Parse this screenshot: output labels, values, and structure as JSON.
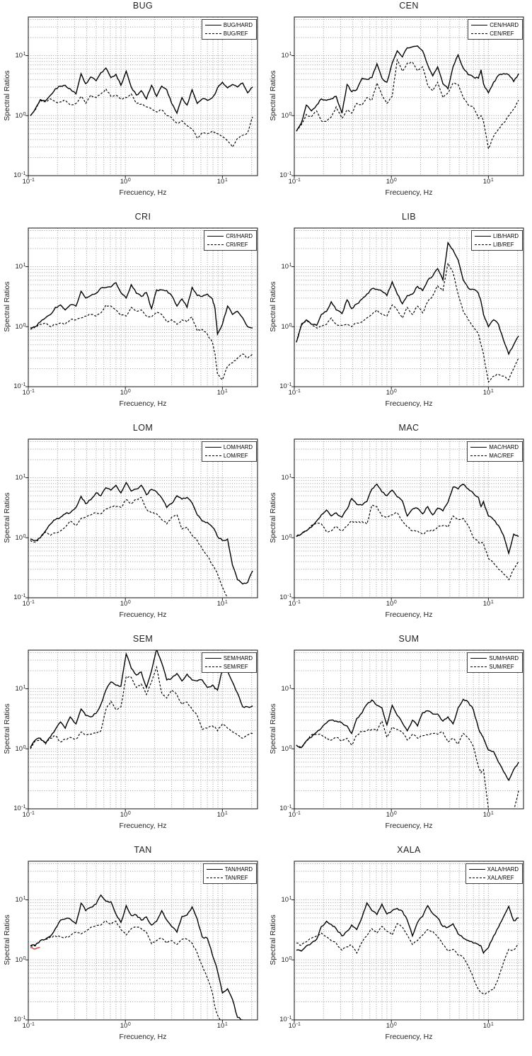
{
  "page": {
    "background": "#ffffff"
  },
  "chart_data": {
    "type": "line",
    "scale": "log-log",
    "xlabel": "Frecuency, Hz",
    "ylabel": "Spectral Ratios",
    "xlim": [
      0.1,
      23
    ],
    "ylim": [
      0.1,
      44
    ],
    "grid": "dotted major and minor gridlines, both axes",
    "legend_position": "top-right inset box",
    "line_styles": {
      "hard": "solid black",
      "ref": "dashed black"
    },
    "colors": {
      "line": "#000000",
      "grid": "#9c9c9c",
      "axis": "#222222",
      "tan_artifact": "#d93025"
    },
    "x_ticks": [
      {
        "m": "10",
        "e": "-1"
      },
      {
        "m": "10",
        "e": "0"
      },
      {
        "m": "10",
        "e": "1"
      }
    ],
    "y_ticks": [
      {
        "m": "10",
        "e": "-1"
      },
      {
        "m": "10",
        "e": "0"
      },
      {
        "m": "10",
        "e": "1"
      }
    ],
    "x_hz": [
      0.105,
      0.118,
      0.133,
      0.15,
      0.17,
      0.19,
      0.215,
      0.24,
      0.27,
      0.31,
      0.35,
      0.39,
      0.44,
      0.5,
      0.56,
      0.63,
      0.71,
      0.8,
      0.9,
      1.02,
      1.15,
      1.3,
      1.46,
      1.65,
      1.86,
      2.1,
      2.37,
      2.67,
      3.0,
      3.4,
      3.83,
      4.32,
      4.87,
      5.5,
      6.2,
      7.0,
      7.9,
      8.4,
      8.9,
      10.0,
      11.3,
      12.7,
      14.3,
      16.2,
      18.2,
      20.5
    ],
    "charts": [
      {
        "title": "BUG",
        "legend": [
          "BUG/HARD",
          "BUG/REF"
        ],
        "hard": [
          1.0,
          1.3,
          1.85,
          1.75,
          2.2,
          2.8,
          3.1,
          3.2,
          2.8,
          2.3,
          5.0,
          3.4,
          4.4,
          3.8,
          5.2,
          6.2,
          4.3,
          4.9,
          3.2,
          5.5,
          3.0,
          2.2,
          2.6,
          1.9,
          3.2,
          2.1,
          3.1,
          2.7,
          1.6,
          1.1,
          2.0,
          1.5,
          2.7,
          1.6,
          1.9,
          1.8,
          2.0,
          2.3,
          2.9,
          3.6,
          2.9,
          3.3,
          3.0,
          3.5,
          2.4,
          3.0
        ],
        "ref": [
          1.0,
          1.25,
          1.8,
          1.7,
          1.9,
          1.7,
          1.7,
          1.8,
          1.5,
          1.6,
          2.1,
          1.6,
          2.2,
          2.0,
          2.3,
          2.8,
          2.1,
          2.2,
          1.9,
          2.0,
          2.3,
          1.6,
          1.55,
          1.4,
          1.3,
          1.15,
          1.25,
          1.0,
          0.93,
          0.75,
          0.82,
          0.68,
          0.6,
          0.42,
          0.52,
          0.5,
          0.55,
          0.52,
          0.5,
          0.45,
          0.38,
          0.3,
          0.42,
          0.47,
          0.52,
          0.95
        ]
      },
      {
        "title": "CEN",
        "legend": [
          "CEN/HARD",
          "CEN/REF"
        ],
        "hard": [
          0.55,
          0.75,
          1.5,
          1.2,
          1.5,
          1.9,
          1.8,
          1.9,
          2.1,
          1.1,
          3.3,
          2.5,
          2.7,
          4.2,
          4.0,
          4.3,
          7.3,
          4.2,
          3.6,
          7.5,
          12,
          9.5,
          13.5,
          14,
          14.5,
          12,
          7,
          4.6,
          6.5,
          3.4,
          2.8,
          6.5,
          10.3,
          6.2,
          4.8,
          4.4,
          4.2,
          5.8,
          3.4,
          2.4,
          3.6,
          4.7,
          5.0,
          4.8,
          3.7,
          5.0
        ],
        "ref": [
          0.55,
          0.7,
          1.05,
          0.95,
          1.2,
          0.82,
          0.8,
          0.95,
          1.4,
          0.9,
          1.25,
          1.1,
          1.6,
          1.5,
          2.0,
          1.8,
          3.5,
          2.2,
          1.6,
          2.1,
          8.5,
          5.5,
          7.5,
          7.8,
          5.6,
          6.5,
          3.2,
          2.6,
          3.6,
          2.0,
          2.4,
          3.5,
          3.3,
          2.0,
          1.5,
          1.4,
          0.9,
          1.0,
          0.8,
          0.28,
          0.45,
          0.6,
          0.75,
          1.0,
          1.3,
          1.8
        ]
      },
      {
        "title": "CRI",
        "legend": [
          "CRI/HARD",
          "CRI/REF"
        ],
        "hard": [
          0.95,
          1.0,
          1.2,
          1.4,
          1.6,
          2.1,
          2.3,
          1.9,
          2.3,
          2.2,
          3.9,
          3.0,
          3.3,
          3.6,
          4.4,
          4.5,
          4.6,
          5.4,
          3.7,
          3.0,
          5.0,
          3.6,
          3.2,
          3.7,
          2.0,
          4.1,
          4.1,
          4.0,
          3.3,
          2.2,
          2.9,
          2.1,
          4.5,
          3.3,
          3.2,
          3.5,
          2.9,
          2.0,
          0.75,
          1.1,
          2.2,
          1.6,
          1.8,
          1.4,
          1.0,
          0.95
        ],
        "ref": [
          0.9,
          1.0,
          1.1,
          1.15,
          1.0,
          1.1,
          1.15,
          1.1,
          1.3,
          1.3,
          1.4,
          1.5,
          1.6,
          1.5,
          1.7,
          2.3,
          2.2,
          1.9,
          1.55,
          1.5,
          2.1,
          1.8,
          1.9,
          1.5,
          1.45,
          1.75,
          1.6,
          1.2,
          1.3,
          1.1,
          1.3,
          1.2,
          1.45,
          0.85,
          0.9,
          0.75,
          0.55,
          0.35,
          0.16,
          0.13,
          0.22,
          0.25,
          0.3,
          0.35,
          0.3,
          0.35
        ]
      },
      {
        "title": "LIB",
        "legend": [
          "LIB/HARD",
          "LIB/REF"
        ],
        "hard": [
          0.55,
          1.05,
          1.3,
          1.1,
          1.05,
          1.6,
          1.8,
          2.6,
          1.9,
          1.65,
          2.8,
          2.0,
          2.4,
          2.9,
          3.5,
          4.3,
          4.2,
          3.9,
          3.3,
          5.6,
          3.5,
          2.4,
          3.3,
          3.5,
          4.7,
          4.0,
          5.9,
          7.0,
          9.3,
          6.0,
          25,
          19,
          13,
          6.0,
          4.4,
          4.2,
          3.6,
          2.6,
          1.6,
          1.0,
          1.3,
          1.1,
          0.6,
          0.35,
          0.5,
          0.7
        ],
        "ref": [
          0.55,
          1.1,
          1.25,
          1.1,
          0.95,
          1.0,
          1.1,
          1.4,
          1.1,
          1.05,
          1.1,
          1.0,
          1.15,
          1.2,
          1.4,
          1.6,
          1.9,
          1.6,
          1.5,
          2.3,
          1.9,
          1.4,
          2.1,
          1.6,
          2.2,
          1.7,
          2.6,
          3.3,
          4.8,
          4.0,
          11.5,
          8.0,
          3.5,
          1.8,
          1.3,
          1.0,
          0.75,
          0.5,
          0.35,
          0.12,
          0.15,
          0.16,
          0.15,
          0.13,
          0.2,
          0.3
        ]
      },
      {
        "title": "LOM",
        "legend": [
          "LOM/HARD",
          "LOM/REF"
        ],
        "hard": [
          0.95,
          0.9,
          1.0,
          1.3,
          1.7,
          2.0,
          2.2,
          2.5,
          2.6,
          3.2,
          4.9,
          3.7,
          4.3,
          5.6,
          5.0,
          6.8,
          6.2,
          7.5,
          5.6,
          8.3,
          6.0,
          6.5,
          7.5,
          5.2,
          6.4,
          5.8,
          4.6,
          3.2,
          3.7,
          5.0,
          4.4,
          4.7,
          3.8,
          2.4,
          1.9,
          1.8,
          1.5,
          1.3,
          1.05,
          0.9,
          0.95,
          0.35,
          0.2,
          0.17,
          0.18,
          0.28
        ],
        "ref": [
          0.9,
          0.85,
          1.0,
          1.25,
          1.1,
          1.2,
          1.3,
          1.5,
          1.9,
          1.6,
          2.1,
          2.2,
          2.4,
          2.6,
          2.5,
          3.0,
          3.3,
          3.3,
          3.2,
          4.3,
          3.7,
          4.4,
          4.7,
          3.0,
          2.6,
          2.5,
          2.0,
          1.7,
          2.2,
          2.4,
          1.4,
          1.5,
          1.1,
          0.9,
          0.65,
          0.5,
          0.35,
          0.3,
          0.25,
          0.15,
          0.1,
          0.07,
          null,
          null,
          null,
          null
        ]
      },
      {
        "title": "MAC",
        "legend": [
          "MAC/HARD",
          "MAC/REF"
        ],
        "hard": [
          1.05,
          1.15,
          1.3,
          1.5,
          1.9,
          2.4,
          2.9,
          2.3,
          2.6,
          2.2,
          3.0,
          4.5,
          3.6,
          3.5,
          4.0,
          6.5,
          7.8,
          5.8,
          5.0,
          6.2,
          4.8,
          4.1,
          2.3,
          3.0,
          3.1,
          2.5,
          3.3,
          2.4,
          3.1,
          2.8,
          3.9,
          7.0,
          6.5,
          7.8,
          6.5,
          5.5,
          4.7,
          3.3,
          4.0,
          2.3,
          2.0,
          1.6,
          1.1,
          0.55,
          1.15,
          1.05
        ],
        "ref": [
          1.05,
          1.15,
          1.3,
          1.6,
          1.75,
          1.7,
          1.25,
          1.3,
          1.55,
          1.3,
          1.55,
          1.9,
          1.8,
          1.85,
          1.7,
          3.5,
          3.3,
          2.3,
          2.2,
          2.4,
          2.6,
          1.9,
          1.5,
          1.3,
          1.3,
          1.15,
          1.3,
          1.3,
          1.5,
          1.6,
          1.5,
          2.3,
          2.0,
          2.1,
          1.6,
          1.0,
          0.85,
          0.82,
          0.8,
          0.45,
          0.38,
          0.3,
          0.25,
          0.2,
          0.3,
          0.4
        ]
      },
      {
        "title": "SEM",
        "legend": [
          "SEM/HARD",
          "SEM/REF"
        ],
        "hard": [
          1.05,
          1.4,
          1.5,
          1.25,
          1.6,
          2.1,
          2.8,
          2.2,
          3.4,
          2.6,
          4.6,
          3.6,
          3.4,
          3.9,
          5.5,
          9.5,
          13,
          11.5,
          11,
          38,
          22,
          17,
          19,
          10.5,
          20,
          46,
          27,
          14,
          15,
          18,
          13.5,
          17.5,
          14,
          13.5,
          14,
          10.5,
          11.5,
          10,
          9.5,
          21,
          19.5,
          13,
          8.5,
          5.0,
          5.0,
          5.2
        ],
        "ref": [
          1.0,
          1.35,
          1.45,
          1.2,
          1.5,
          1.65,
          1.3,
          1.45,
          1.55,
          1.45,
          1.9,
          1.7,
          1.75,
          1.8,
          2.0,
          4.5,
          6.2,
          4.5,
          5.0,
          16,
          15.5,
          10.5,
          12,
          8.0,
          13,
          23,
          8.5,
          7.0,
          9.5,
          8.0,
          5.5,
          6.0,
          4.5,
          3.6,
          2.1,
          2.2,
          2.4,
          2.3,
          2.0,
          2.6,
          2.2,
          1.9,
          1.7,
          1.5,
          1.7,
          1.8
        ]
      },
      {
        "title": "SUM",
        "legend": [
          "SUM/HARD",
          "SUM/REF"
        ],
        "hard": [
          1.15,
          1.05,
          1.35,
          1.55,
          1.9,
          2.2,
          2.7,
          3.0,
          2.9,
          2.7,
          2.4,
          1.8,
          3.2,
          4.0,
          5.5,
          6.5,
          5.3,
          4.8,
          2.5,
          5.3,
          3.6,
          2.7,
          2.0,
          3.0,
          2.4,
          4.0,
          4.3,
          3.8,
          3.8,
          2.9,
          3.4,
          2.6,
          4.8,
          6.7,
          6.0,
          4.5,
          2.2,
          1.8,
          1.5,
          0.95,
          0.9,
          0.6,
          0.42,
          0.3,
          0.45,
          0.6
        ],
        "ref": [
          1.15,
          1.05,
          1.35,
          1.7,
          1.75,
          1.7,
          1.45,
          1.4,
          1.55,
          1.35,
          1.5,
          1.15,
          1.7,
          1.95,
          2.0,
          2.1,
          2.0,
          2.9,
          1.55,
          2.3,
          2.1,
          1.9,
          1.4,
          1.75,
          1.5,
          1.65,
          1.7,
          1.8,
          1.75,
          1.9,
          1.3,
          1.5,
          1.2,
          1.8,
          1.5,
          1.1,
          0.5,
          0.4,
          0.45,
          0.1,
          0.07,
          0.06,
          0.07,
          0.08,
          0.09,
          0.2
        ]
      },
      {
        "title": "TAN",
        "legend": [
          "TAN/HARD",
          "TAN/REF"
        ],
        "hard": [
          1.7,
          1.75,
          2.1,
          2.2,
          2.5,
          3.3,
          4.6,
          4.8,
          4.8,
          4.0,
          8.8,
          6.6,
          7.5,
          8.5,
          12,
          9.5,
          9.3,
          5.8,
          4.2,
          8.0,
          5.5,
          5.6,
          4.6,
          5.2,
          3.8,
          4.4,
          6.6,
          4.6,
          3.6,
          2.9,
          5.3,
          5.6,
          7.6,
          4.8,
          2.4,
          2.3,
          1.2,
          0.9,
          0.65,
          0.28,
          0.33,
          0.22,
          0.11,
          0.1,
          null,
          null
        ],
        "ref": [
          1.7,
          1.7,
          2.1,
          2.2,
          2.4,
          2.5,
          2.4,
          2.35,
          2.5,
          2.9,
          2.7,
          3.0,
          3.5,
          3.7,
          3.8,
          4.5,
          3.9,
          4.4,
          3.2,
          2.6,
          3.3,
          3.5,
          3.3,
          2.9,
          1.85,
          2.1,
          2.3,
          1.9,
          2.1,
          1.8,
          2.2,
          2.2,
          1.9,
          1.3,
          0.8,
          0.5,
          0.28,
          0.16,
          0.12,
          0.08,
          null,
          null,
          null,
          null,
          null,
          null
        ],
        "artifact": {
          "color": "#d93025",
          "x": [
            0.105,
            0.118,
            0.132
          ],
          "y": [
            1.6,
            1.52,
            1.62
          ]
        }
      },
      {
        "title": "XALA",
        "legend": [
          "XALA/HARD",
          "XALA/REF"
        ],
        "hard": [
          1.45,
          1.4,
          1.7,
          1.9,
          2.2,
          3.6,
          4.4,
          3.9,
          3.3,
          2.5,
          3.0,
          3.8,
          3.2,
          5.2,
          8.9,
          6.6,
          5.7,
          8.5,
          5.8,
          6.6,
          7.2,
          6.5,
          4.6,
          2.5,
          4.2,
          5.3,
          8.0,
          5.9,
          5.0,
          3.6,
          3.5,
          4.0,
          2.7,
          2.3,
          2.1,
          1.9,
          1.8,
          1.7,
          1.3,
          1.6,
          2.5,
          3.5,
          5.2,
          7.8,
          4.5,
          5.0
        ],
        "ref": [
          1.9,
          1.75,
          2.0,
          2.3,
          2.5,
          2.8,
          2.4,
          2.1,
          1.9,
          1.45,
          1.65,
          1.75,
          1.3,
          2.0,
          2.5,
          3.3,
          2.8,
          3.6,
          3.0,
          2.6,
          4.0,
          3.5,
          2.6,
          1.8,
          2.1,
          2.6,
          3.2,
          3.0,
          2.4,
          1.8,
          1.4,
          1.5,
          1.2,
          1.1,
          0.8,
          0.5,
          0.32,
          0.29,
          0.27,
          0.29,
          0.32,
          0.5,
          0.9,
          1.5,
          1.45,
          1.85
        ]
      }
    ]
  }
}
